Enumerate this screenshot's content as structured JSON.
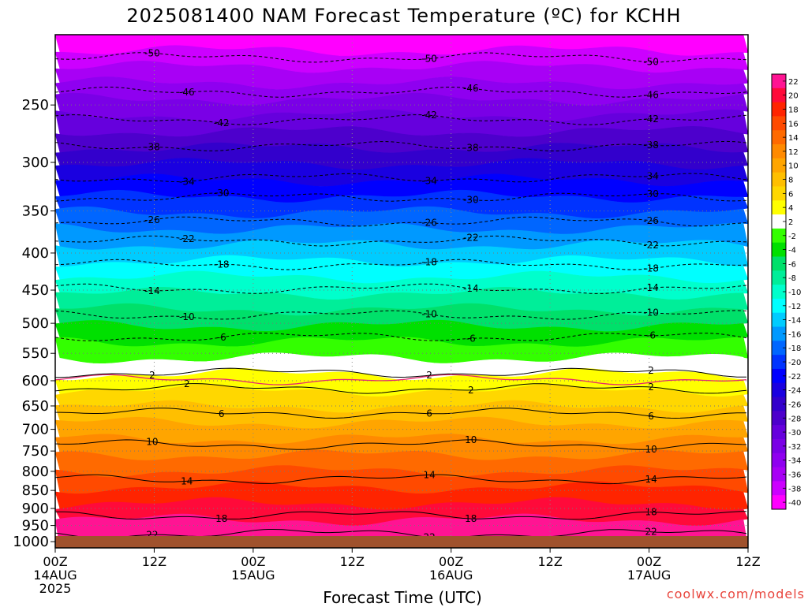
{
  "title": "2025081400 NAM Forecast Temperature (ºC) for KCHH",
  "credit": "coolwx.com/models",
  "chart_data": {
    "type": "heatmap",
    "title": "2025081400 NAM Forecast Temperature (ºC) for KCHH",
    "xlabel": "Forecast Time (UTC)",
    "ylabel": "",
    "y_axis": {
      "scale": "log-pressure",
      "unit": "hPa",
      "range": [
        200,
        1020
      ],
      "ticks": [
        250,
        300,
        350,
        400,
        450,
        500,
        550,
        600,
        650,
        700,
        750,
        800,
        850,
        900,
        950,
        1000
      ]
    },
    "x_axis": {
      "unit": "forecast hours",
      "range": [
        0,
        84
      ],
      "ticks": [
        {
          "hour": 0,
          "lines": [
            "00Z",
            "14AUG",
            "2025"
          ]
        },
        {
          "hour": 12,
          "lines": [
            "12Z"
          ]
        },
        {
          "hour": 24,
          "lines": [
            "00Z",
            "15AUG"
          ]
        },
        {
          "hour": 36,
          "lines": [
            "12Z"
          ]
        },
        {
          "hour": 48,
          "lines": [
            "00Z",
            "16AUG"
          ]
        },
        {
          "hour": 60,
          "lines": [
            "12Z"
          ]
        },
        {
          "hour": 72,
          "lines": [
            "00Z",
            "17AUG"
          ]
        },
        {
          "hour": 84,
          "lines": [
            "12Z"
          ]
        }
      ]
    },
    "colorbar": {
      "labels": [
        "22",
        "20",
        "18",
        "16",
        "14",
        "12",
        "10",
        "8",
        "6",
        "4",
        "2",
        "-2",
        "-4",
        "-6",
        "-8",
        "-10",
        "-12",
        "-14",
        "-16",
        "-18",
        "-20",
        "-22",
        "-24",
        "-26",
        "-28",
        "-30",
        "-32",
        "-34",
        "-36",
        "-38",
        "-40"
      ],
      "colors": [
        "#ff1493",
        "#ff0a3a",
        "#ff2400",
        "#ff4a00",
        "#ff6a00",
        "#ff8a00",
        "#ffa500",
        "#ffbf00",
        "#ffd700",
        "#ffff00",
        "#ffffff",
        "#33ff00",
        "#00e000",
        "#00e06a",
        "#00ee99",
        "#00ffcc",
        "#00ffff",
        "#00ccff",
        "#0099ff",
        "#0066ff",
        "#0033ff",
        "#0000ff",
        "#1a00e0",
        "#3300cc",
        "#4d00cc",
        "#6600dd",
        "#7a00e6",
        "#8f00f0",
        "#a800f5",
        "#cc00ff",
        "#ff00ff"
      ]
    },
    "ground_color": "#a0522d",
    "freezing_line_color": "#e8286e",
    "temperature_contours": [
      {
        "value": -50,
        "pressure": 215
      },
      {
        "value": -46,
        "pressure": 240
      },
      {
        "value": -42,
        "pressure": 262
      },
      {
        "value": -38,
        "pressure": 285
      },
      {
        "value": -34,
        "pressure": 315
      },
      {
        "value": -30,
        "pressure": 335
      },
      {
        "value": -26,
        "pressure": 362
      },
      {
        "value": -22,
        "pressure": 385
      },
      {
        "value": -18,
        "pressure": 415
      },
      {
        "value": -14,
        "pressure": 448
      },
      {
        "value": -10,
        "pressure": 487
      },
      {
        "value": -6,
        "pressure": 522
      },
      {
        "value": 2,
        "pressure": 585
      },
      {
        "value": 2,
        "pressure": 615
      },
      {
        "value": 6,
        "pressure": 665
      },
      {
        "value": 10,
        "pressure": 735
      },
      {
        "value": 14,
        "pressure": 820
      },
      {
        "value": 18,
        "pressure": 920
      },
      {
        "value": 22,
        "pressure": 975
      }
    ]
  }
}
